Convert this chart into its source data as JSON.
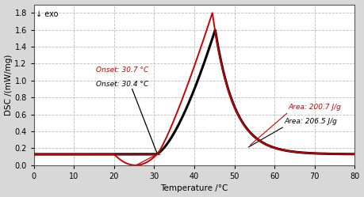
{
  "xlabel": "Temperature /°C",
  "ylabel": "DSC /(mW/mg)",
  "exo_label": "↓ exo",
  "xlim": [
    0,
    80
  ],
  "ylim": [
    0,
    1.9
  ],
  "xticks": [
    0,
    10,
    20,
    30,
    40,
    50,
    60,
    70,
    80
  ],
  "yticks": [
    0.0,
    0.2,
    0.4,
    0.6,
    0.8,
    1.0,
    1.2,
    1.4,
    1.6,
    1.8
  ],
  "grid_color": "#bbbbbb",
  "bg_color": "#ffffff",
  "fig_bg_color": "#d8d8d8",
  "red_onset_label": "Onset: 30.7 °C",
  "black_onset_label": "Onset: 30.4 °C",
  "red_area_label": "Area: 200.7 J/g",
  "black_area_label": "Area: 206.5 J/g",
  "red_color": "#cc0000",
  "black_color": "#000000",
  "baseline_y": 0.13,
  "black_onset_x": 30.4,
  "red_onset_x": 30.7,
  "black_peak_x": 45.2,
  "black_peak_y": 1.6,
  "red_peak_x": 44.5,
  "red_peak_y": 1.8
}
